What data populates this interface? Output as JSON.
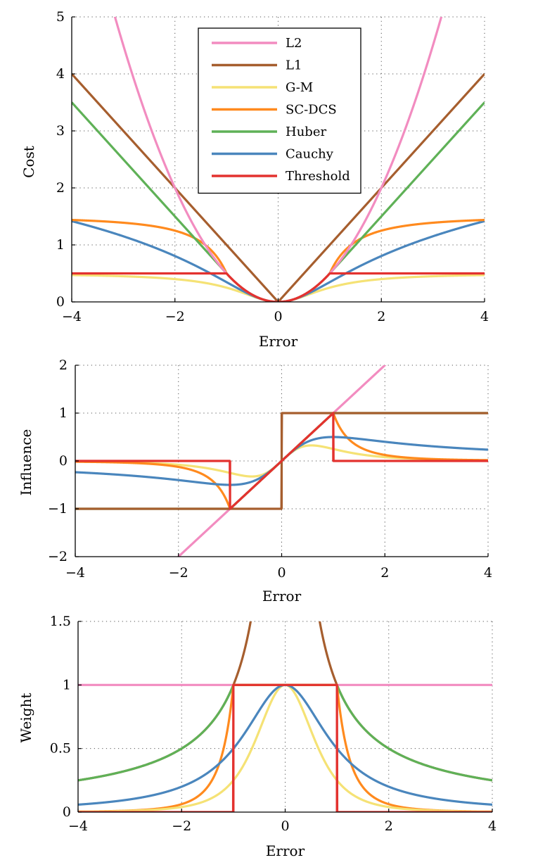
{
  "colors": {
    "L2": "#f28cc0",
    "L1": "#a65e2e",
    "G-M": "#f5e275",
    "SC-DCS": "#ff8a1e",
    "Huber": "#5fb157",
    "Cauchy": "#4a86bd",
    "Threshold": "#e3322f"
  },
  "chart_data": [
    {
      "type": "line",
      "xlabel": "Error",
      "ylabel": "Cost",
      "xlim": [
        -4,
        4
      ],
      "ylim": [
        0,
        5
      ],
      "xticks": [
        "−4",
        "−2",
        "0",
        "2",
        "4"
      ],
      "yticks": [
        "0",
        "1",
        "2",
        "3",
        "4",
        "5"
      ],
      "grid": "dotted",
      "legend": {
        "placement": "top-center",
        "entries": [
          "L2",
          "L1",
          "G-M",
          "SC-DCS",
          "Huber",
          "Cauchy",
          "Threshold"
        ]
      },
      "series": [
        {
          "name": "L2",
          "function": "x^2/2",
          "x": [
            -4,
            -3,
            -2,
            -1,
            0,
            1,
            2,
            3,
            4
          ],
          "values": [
            8,
            4.5,
            2,
            0.5,
            0,
            0.5,
            2,
            4.5,
            8
          ]
        },
        {
          "name": "L1",
          "function": "|x|",
          "x": [
            -4,
            -3,
            -2,
            -1,
            0,
            1,
            2,
            3,
            4
          ],
          "values": [
            4,
            3,
            2,
            1,
            0,
            1,
            2,
            3,
            4
          ]
        },
        {
          "name": "G-M",
          "function": "x^2/(2(1+x^2))",
          "x": [
            -4,
            -3,
            -2,
            -1,
            0,
            1,
            2,
            3,
            4
          ],
          "values": [
            0.47,
            0.45,
            0.4,
            0.25,
            0,
            0.25,
            0.4,
            0.45,
            0.47
          ]
        },
        {
          "name": "SC-DCS",
          "function": "|x|<=1: x^2/2; else 1.5-1/x^2",
          "x": [
            -4,
            -3,
            -2,
            -1,
            0,
            1,
            2,
            3,
            4
          ],
          "values": [
            1.44,
            1.39,
            1.25,
            0.5,
            0,
            0.5,
            1.25,
            1.39,
            1.44
          ]
        },
        {
          "name": "Huber",
          "function": "|x|<=1: x^2/2; else |x|-1/2",
          "x": [
            -4,
            -3,
            -2,
            -1,
            0,
            1,
            2,
            3,
            4
          ],
          "values": [
            3.5,
            2.5,
            1.5,
            0.5,
            0,
            0.5,
            1.5,
            2.5,
            3.5
          ]
        },
        {
          "name": "Cauchy",
          "function": "ln(1+x^2)/2",
          "x": [
            -4,
            -3,
            -2,
            -1,
            0,
            1,
            2,
            3,
            4
          ],
          "values": [
            1.42,
            1.15,
            0.8,
            0.35,
            0,
            0.35,
            0.8,
            1.15,
            1.42
          ]
        },
        {
          "name": "Threshold",
          "function": "|x|<=1: x^2/2; else 1/2",
          "x": [
            -4,
            -3,
            -2,
            -1,
            0,
            1,
            2,
            3,
            4
          ],
          "values": [
            0.5,
            0.5,
            0.5,
            0.5,
            0,
            0.5,
            0.5,
            0.5,
            0.5
          ]
        }
      ]
    },
    {
      "type": "line",
      "xlabel": "Error",
      "ylabel": "Influence",
      "xlim": [
        -4,
        4
      ],
      "ylim": [
        -2,
        2
      ],
      "xticks": [
        "−4",
        "−2",
        "0",
        "2",
        "4"
      ],
      "yticks": [
        "−2",
        "−1",
        "0",
        "1",
        "2"
      ],
      "grid": "dotted",
      "series": [
        {
          "name": "L2",
          "function": "x",
          "x": [
            -2,
            0,
            2
          ],
          "values": [
            -2,
            0,
            2
          ]
        },
        {
          "name": "L1",
          "function": "sign(x)",
          "x": [
            -4,
            -1,
            0,
            1,
            4
          ],
          "values": [
            -1,
            -1,
            0,
            1,
            1
          ]
        },
        {
          "name": "G-M",
          "function": "x/(1+x^2)^2",
          "x": [
            -4,
            -2,
            -0.58,
            0,
            0.58,
            2,
            4
          ],
          "values": [
            -0.01,
            -0.08,
            -0.32,
            0,
            0.32,
            0.08,
            0.01
          ]
        },
        {
          "name": "SC-DCS",
          "function": "|x|<=1: x; else 1/x^3",
          "x": [
            -4,
            -2,
            -1,
            0,
            1,
            2,
            4
          ],
          "values": [
            -0.02,
            -0.13,
            -1,
            0,
            1,
            0.13,
            0.02
          ]
        },
        {
          "name": "Huber",
          "function": "clip(x,-1,1)",
          "x": [
            -4,
            -1,
            0,
            1,
            4
          ],
          "values": [
            -1,
            -1,
            0,
            1,
            1
          ]
        },
        {
          "name": "Cauchy",
          "function": "x/(1+x^2)",
          "x": [
            -4,
            -2,
            -1,
            0,
            1,
            2,
            4
          ],
          "values": [
            -0.24,
            -0.4,
            -0.5,
            0,
            0.5,
            0.4,
            0.24
          ]
        },
        {
          "name": "Threshold",
          "function": "|x|<=1: x; else 0",
          "x": [
            -4,
            -1,
            0,
            1,
            4
          ],
          "values": [
            0,
            -1,
            0,
            1,
            0
          ]
        }
      ]
    },
    {
      "type": "line",
      "xlabel": "Error",
      "ylabel": "Weight",
      "xlim": [
        -4,
        4
      ],
      "ylim": [
        0,
        1.5
      ],
      "xticks": [
        "−4",
        "−2",
        "0",
        "2",
        "4"
      ],
      "yticks": [
        "0",
        "0.5",
        "1",
        "1.5"
      ],
      "grid": "dotted",
      "series": [
        {
          "name": "L2",
          "function": "1",
          "x": [
            -4,
            0,
            4
          ],
          "values": [
            1,
            1,
            1
          ]
        },
        {
          "name": "L1",
          "function": "1/|x|",
          "x": [
            -1,
            -0.67,
            0.67,
            1
          ],
          "values": [
            1,
            1.5,
            1.5,
            1
          ]
        },
        {
          "name": "G-M",
          "function": "1/(1+x^2)^2",
          "x": [
            -4,
            -2,
            -1,
            0,
            1,
            2,
            4
          ],
          "values": [
            0,
            0.04,
            0.25,
            1,
            0.25,
            0.04,
            0
          ]
        },
        {
          "name": "SC-DCS",
          "function": "|x|<=1: 1; else 1/x^4",
          "x": [
            -4,
            -2,
            -1,
            0,
            1,
            2,
            4
          ],
          "values": [
            0,
            0.06,
            1,
            1,
            1,
            0.06,
            0
          ]
        },
        {
          "name": "Huber",
          "function": "|x|<=1: 1; else 1/|x|",
          "x": [
            -4,
            -2,
            -1,
            0,
            1,
            2,
            4
          ],
          "values": [
            0.25,
            0.5,
            1,
            1,
            1,
            0.5,
            0.25
          ]
        },
        {
          "name": "Cauchy",
          "function": "1/(1+x^2)",
          "x": [
            -4,
            -2,
            -1,
            0,
            1,
            2,
            4
          ],
          "values": [
            0.06,
            0.2,
            0.5,
            1,
            0.5,
            0.2,
            0.06
          ]
        },
        {
          "name": "Threshold",
          "function": "|x|<=1: 1; else 0",
          "x": [
            -4,
            -1,
            0,
            1,
            4
          ],
          "values": [
            0,
            1,
            1,
            1,
            0
          ]
        }
      ]
    }
  ]
}
